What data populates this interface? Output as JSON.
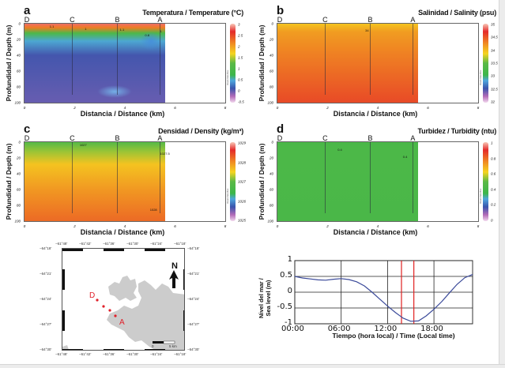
{
  "common": {
    "ylabel": "Profundidad / Depth (m)",
    "xlabel": "Distancia / Distance (km)",
    "yticks": [
      "0",
      "20",
      "40",
      "60",
      "80",
      "100"
    ],
    "xticks": [
      "0",
      "2",
      "4",
      "6",
      "8"
    ],
    "stations": [
      {
        "name": "D",
        "x_km": 0.0
      },
      {
        "name": "C",
        "x_km": 1.9
      },
      {
        "name": "B",
        "x_km": 3.7
      },
      {
        "name": "A",
        "x_km": 5.4
      }
    ],
    "colorbar_credit": "Ocean Data View"
  },
  "chart_data": [
    {
      "id": "a",
      "type": "heatmap",
      "letter": "a",
      "title": "Temperatura / Temperature (°C)",
      "xlabel": "Distancia / Distance (km)",
      "ylabel": "Profundidad / Depth (m)",
      "xlim": [
        0,
        8
      ],
      "ylim": [
        0,
        100
      ],
      "data_xmax_km": 5.6,
      "colorbar": {
        "min": -0.5,
        "max": 3,
        "ticks": [
          "3",
          "2.5",
          "2",
          "1.5",
          "1",
          "0.5",
          "0",
          "-0.5"
        ]
      },
      "contour_labels": [
        {
          "text": "1.1",
          "x_km": 1.0,
          "depth": 1
        },
        {
          "text": "1",
          "x_km": 2.4,
          "depth": 4
        },
        {
          "text": "1.1",
          "x_km": 3.8,
          "depth": 5
        },
        {
          "text": "0.8",
          "x_km": 4.8,
          "depth": 12
        },
        {
          "text": "1",
          "x_km": 5.4,
          "depth": 7
        }
      ],
      "profile": [
        {
          "depth": 0,
          "value": 2.8
        },
        {
          "depth": 5,
          "value": 2.2
        },
        {
          "depth": 12,
          "value": 1.0
        },
        {
          "depth": 22,
          "value": 0.5
        },
        {
          "depth": 40,
          "value": 0.1
        },
        {
          "depth": 100,
          "value": 0.0
        }
      ]
    },
    {
      "id": "b",
      "type": "heatmap",
      "letter": "b",
      "title": "Salinidad / Salinity (psu)",
      "xlabel": "Distancia / Distance (km)",
      "ylabel": "Profundidad / Depth (m)",
      "xlim": [
        0,
        8
      ],
      "ylim": [
        0,
        100
      ],
      "data_xmax_km": 5.6,
      "colorbar": {
        "min": 32,
        "max": 35,
        "ticks": [
          "35",
          "34.5",
          "34",
          "33.5",
          "33",
          "32.5",
          "32"
        ]
      },
      "contour_labels": [
        {
          "text": "34",
          "x_km": 3.5,
          "depth": 6
        }
      ],
      "profile": [
        {
          "depth": 0,
          "value": 33.95
        },
        {
          "depth": 10,
          "value": 34.15
        },
        {
          "depth": 40,
          "value": 34.3
        },
        {
          "depth": 100,
          "value": 34.55
        }
      ]
    },
    {
      "id": "c",
      "type": "heatmap",
      "letter": "c",
      "title": "Densidad / Density (kg/m³)",
      "xlabel": "Distancia / Distance (km)",
      "ylabel": "Profundidad / Depth (m)",
      "xlim": [
        0,
        8
      ],
      "ylim": [
        0,
        100
      ],
      "data_xmax_km": 5.6,
      "colorbar": {
        "min": 1025,
        "max": 1029,
        "ticks": [
          "1029",
          "1028",
          "1027",
          "1026",
          "1025"
        ]
      },
      "contour_labels": [
        {
          "text": "1027",
          "x_km": 2.2,
          "depth": 1
        },
        {
          "text": "1027.5",
          "x_km": 5.4,
          "depth": 12
        },
        {
          "text": "1028",
          "x_km": 5.0,
          "depth": 83
        }
      ],
      "profile": [
        {
          "depth": 0,
          "value": 1026.9
        },
        {
          "depth": 12,
          "value": 1027.2
        },
        {
          "depth": 28,
          "value": 1027.6
        },
        {
          "depth": 60,
          "value": 1027.9
        },
        {
          "depth": 100,
          "value": 1028.2
        }
      ]
    },
    {
      "id": "d",
      "type": "heatmap",
      "letter": "d",
      "title": "Turbidez / Turbidity (ntu)",
      "xlabel": "Distancia / Distance (km)",
      "ylabel": "Profundidad / Depth (m)",
      "xlim": [
        0,
        8
      ],
      "ylim": [
        0,
        100
      ],
      "data_xmax_km": 5.6,
      "colorbar": {
        "min": 0,
        "max": 1,
        "ticks": [
          "1",
          "0.8",
          "0.6",
          "0.4",
          "0.2",
          "0"
        ]
      },
      "contour_labels": [
        {
          "text": "0.4",
          "x_km": 2.4,
          "depth": 7
        },
        {
          "text": "0.4",
          "x_km": 5.0,
          "depth": 16
        }
      ],
      "profile": [
        {
          "depth": 0,
          "value": 0.42
        },
        {
          "depth": 10,
          "value": 0.43
        },
        {
          "depth": 100,
          "value": 0.42
        }
      ]
    },
    {
      "id": "tide",
      "type": "line",
      "title": "",
      "xlabel": "Tiempo (hora local) / Time (Local time)",
      "ylabel_line1": "Nivel del mar /",
      "ylabel_line2": "Sea level (m)",
      "xlim": [
        0,
        23
      ],
      "ylim": [
        -1,
        1
      ],
      "xticks": [
        {
          "value": 0,
          "label": "00:00"
        },
        {
          "value": 6,
          "label": "06:00"
        },
        {
          "value": 12,
          "label": "12:00"
        },
        {
          "value": 18,
          "label": "18:00"
        }
      ],
      "yticks": [
        {
          "value": 1,
          "label": "1"
        },
        {
          "value": 0.5,
          "label": "0.5"
        },
        {
          "value": 0,
          "label": "0"
        },
        {
          "value": -0.5,
          "label": "-0.5"
        },
        {
          "value": -1,
          "label": "-1"
        }
      ],
      "grid": true,
      "series": [
        {
          "name": "sea level",
          "color": "#3b4a9a",
          "x": [
            0,
            1,
            2,
            3,
            4,
            5,
            6,
            7,
            8,
            9,
            10,
            11,
            12,
            13,
            14,
            15,
            16,
            17,
            18,
            19,
            20,
            21,
            22,
            23
          ],
          "y": [
            0.5,
            0.45,
            0.42,
            0.39,
            0.38,
            0.41,
            0.43,
            0.4,
            0.33,
            0.2,
            0.0,
            -0.22,
            -0.44,
            -0.64,
            -0.82,
            -0.92,
            -0.91,
            -0.75,
            -0.54,
            -0.3,
            -0.02,
            0.25,
            0.46,
            0.56
          ]
        }
      ],
      "markers": [
        {
          "x": 13.8,
          "color": "#e02020"
        },
        {
          "x": 15.4,
          "color": "#e02020"
        }
      ]
    }
  ],
  "map": {
    "top_ticks": [
      "−61°48'",
      "−61°42'",
      "−61°36'",
      "−61°30'",
      "−61°24'",
      "−61°18'"
    ],
    "left_ticks": [
      "−64°18'",
      "−64°21'",
      "−64°24'",
      "−64°27'",
      "−64°30'"
    ],
    "north_label": "N",
    "scale_start": "0",
    "scale_end": "5 km",
    "stations": [
      {
        "name": "D",
        "label": true
      },
      {
        "name": "C",
        "label": false
      },
      {
        "name": "B",
        "label": false
      },
      {
        "name": "A",
        "label": true
      }
    ],
    "station_color": "#e0202a",
    "land_color": "#cccccc"
  }
}
